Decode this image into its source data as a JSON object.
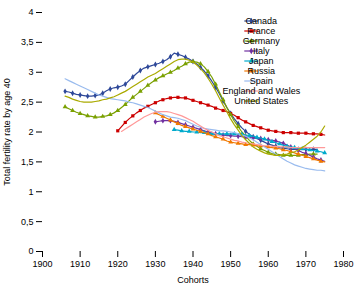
{
  "chart_data": {
    "type": "line",
    "xlabel": "Cohorts",
    "ylabel": "Total fertility rate by age 40",
    "xlim": [
      1900,
      1980
    ],
    "ylim": [
      0,
      4
    ],
    "xticks": [
      1900,
      1910,
      1920,
      1930,
      1940,
      1950,
      1960,
      1970,
      1980
    ],
    "yticks": [
      0,
      {
        "value": 0.5,
        "label": "0,5"
      },
      1,
      {
        "value": 1.5,
        "label": "1,5"
      },
      2,
      {
        "value": 2.5,
        "label": "2,5"
      },
      3,
      {
        "value": 3.5,
        "label": "3,5"
      },
      4
    ],
    "grid": false,
    "legend": "upper right",
    "x": [
      1906,
      1907,
      1908,
      1909,
      1910,
      1911,
      1912,
      1913,
      1914,
      1915,
      1916,
      1917,
      1918,
      1919,
      1920,
      1921,
      1922,
      1923,
      1924,
      1925,
      1926,
      1927,
      1928,
      1929,
      1930,
      1931,
      1932,
      1933,
      1934,
      1935,
      1936,
      1937,
      1938,
      1939,
      1940,
      1941,
      1942,
      1943,
      1944,
      1945,
      1946,
      1947,
      1948,
      1949,
      1950,
      1951,
      1952,
      1953,
      1954,
      1955,
      1956,
      1957,
      1958,
      1959,
      1960,
      1961,
      1962,
      1963,
      1964,
      1965,
      1966,
      1967,
      1968,
      1969,
      1970,
      1971,
      1972,
      1973,
      1974,
      1975
    ],
    "series": [
      {
        "name": "Canada",
        "color": "#2E4899",
        "marker": "diamond",
        "values": [
          2.68,
          2.67,
          2.65,
          2.63,
          2.62,
          2.61,
          2.6,
          2.6,
          2.61,
          2.62,
          2.65,
          2.69,
          2.72,
          2.74,
          2.75,
          2.77,
          2.8,
          2.86,
          2.92,
          2.98,
          3.03,
          3.07,
          3.09,
          3.11,
          3.13,
          3.15,
          3.18,
          3.21,
          3.26,
          3.32,
          3.3,
          3.28,
          3.25,
          3.22,
          3.18,
          3.14,
          3.08,
          3.02,
          2.94,
          2.85,
          2.75,
          2.64,
          2.52,
          2.41,
          2.31,
          2.22,
          2.14,
          2.07,
          2.01,
          1.96,
          1.92,
          1.89,
          1.86,
          1.83,
          1.8,
          1.78,
          1.76,
          1.74,
          1.73,
          1.72,
          1.71,
          1.71,
          1.71,
          1.71,
          1.71,
          1.71,
          1.71,
          1.71,
          null,
          null
        ]
      },
      {
        "name": "France",
        "color": "#CC0000",
        "marker": "square",
        "values": [
          null,
          null,
          null,
          null,
          null,
          null,
          null,
          null,
          null,
          null,
          null,
          null,
          null,
          null,
          2.02,
          2.09,
          2.16,
          2.22,
          2.27,
          2.32,
          2.36,
          2.4,
          2.43,
          2.46,
          2.49,
          2.52,
          2.54,
          2.56,
          2.57,
          2.58,
          2.58,
          2.57,
          2.57,
          2.55,
          2.53,
          2.51,
          2.49,
          2.47,
          2.45,
          2.43,
          2.4,
          2.38,
          2.36,
          2.34,
          2.31,
          2.28,
          2.24,
          2.2,
          2.17,
          2.14,
          2.11,
          2.09,
          2.07,
          2.05,
          2.03,
          2.02,
          2.01,
          2.0,
          1.99,
          1.99,
          1.99,
          1.98,
          1.98,
          1.98,
          1.98,
          1.97,
          1.97,
          1.97,
          1.96,
          1.95
        ]
      },
      {
        "name": "Germany",
        "color": "#7AA000",
        "marker": "triangle",
        "values": [
          2.42,
          2.39,
          2.36,
          2.33,
          2.31,
          2.29,
          2.27,
          2.26,
          2.25,
          2.25,
          2.26,
          2.27,
          2.29,
          2.32,
          2.36,
          2.41,
          2.46,
          2.52,
          2.58,
          2.63,
          2.68,
          2.73,
          2.78,
          2.83,
          2.87,
          2.91,
          2.94,
          2.97,
          3.0,
          3.03,
          3.07,
          3.1,
          3.14,
          3.17,
          3.18,
          3.17,
          3.14,
          3.09,
          3.01,
          2.92,
          2.8,
          2.67,
          2.54,
          2.41,
          2.29,
          2.18,
          2.09,
          2.0,
          1.93,
          1.86,
          1.8,
          1.76,
          1.72,
          1.69,
          1.66,
          1.64,
          1.63,
          1.62,
          1.61,
          1.61,
          1.61,
          1.61,
          1.61,
          1.62,
          1.62,
          1.63,
          1.63,
          1.63,
          null,
          null
        ]
      },
      {
        "name": "Italy",
        "color": "#7030A0",
        "marker": "diamond",
        "values": [
          null,
          null,
          null,
          null,
          null,
          null,
          null,
          null,
          null,
          null,
          null,
          null,
          null,
          null,
          null,
          null,
          null,
          null,
          null,
          null,
          null,
          null,
          null,
          null,
          2.17,
          2.18,
          2.19,
          2.19,
          2.19,
          2.18,
          2.16,
          2.14,
          2.12,
          2.1,
          2.08,
          2.06,
          2.04,
          2.02,
          2.0,
          1.98,
          1.97,
          1.96,
          1.95,
          1.94,
          1.94,
          1.93,
          1.93,
          1.92,
          1.91,
          1.91,
          1.9,
          1.89,
          1.89,
          1.88,
          1.87,
          1.86,
          1.85,
          1.83,
          1.81,
          1.78,
          1.75,
          1.72,
          1.69,
          1.66,
          1.64,
          1.61,
          1.58,
          1.55,
          1.53,
          1.51
        ]
      },
      {
        "name": "Japan",
        "color": "#00AACC",
        "marker": "triangle",
        "values": [
          null,
          null,
          null,
          null,
          null,
          null,
          null,
          null,
          null,
          null,
          null,
          null,
          null,
          null,
          null,
          null,
          null,
          null,
          null,
          null,
          null,
          null,
          null,
          null,
          null,
          null,
          null,
          null,
          null,
          2.04,
          2.03,
          2.02,
          2.01,
          2.01,
          2.0,
          2.0,
          1.99,
          1.99,
          1.98,
          1.97,
          1.97,
          1.97,
          1.97,
          1.97,
          1.97,
          1.97,
          1.97,
          1.96,
          1.95,
          1.94,
          1.93,
          1.91,
          1.9,
          1.88,
          1.86,
          1.84,
          1.82,
          1.8,
          1.78,
          1.76,
          1.75,
          1.74,
          1.73,
          1.72,
          1.71,
          1.7,
          1.69,
          1.68,
          1.67,
          1.65
        ]
      },
      {
        "name": "Russia",
        "color": "#F07800",
        "marker": "triangle",
        "values": [
          null,
          null,
          null,
          null,
          null,
          null,
          null,
          null,
          null,
          null,
          null,
          null,
          null,
          null,
          null,
          null,
          null,
          null,
          null,
          null,
          null,
          null,
          null,
          null,
          2.32,
          2.29,
          2.26,
          2.23,
          2.2,
          2.17,
          2.14,
          2.11,
          2.09,
          2.07,
          2.05,
          2.03,
          2.01,
          1.99,
          1.97,
          1.94,
          1.92,
          1.9,
          1.88,
          1.85,
          1.83,
          1.82,
          1.81,
          1.8,
          1.79,
          1.79,
          1.78,
          1.77,
          1.77,
          1.76,
          1.75,
          1.74,
          1.73,
          1.72,
          1.7,
          1.69,
          1.67,
          1.65,
          1.63,
          1.61,
          1.59,
          1.57,
          1.55,
          1.53,
          1.51,
          1.5
        ]
      },
      {
        "name": "Spain",
        "color": "#99BBEE",
        "values": [
          2.89,
          2.86,
          2.83,
          2.8,
          2.77,
          2.74,
          2.71,
          2.68,
          2.65,
          2.62,
          2.6,
          2.58,
          2.56,
          2.55,
          2.54,
          2.53,
          2.52,
          2.5,
          2.49,
          2.47,
          2.45,
          2.43,
          2.41,
          2.38,
          2.35,
          2.32,
          2.29,
          2.27,
          2.25,
          2.24,
          2.23,
          2.21,
          2.19,
          2.16,
          2.13,
          2.1,
          2.08,
          2.06,
          2.05,
          2.04,
          2.03,
          2.02,
          2.02,
          2.01,
          2.0,
          1.99,
          1.97,
          1.95,
          1.93,
          1.9,
          1.87,
          1.83,
          1.79,
          1.75,
          1.71,
          1.67,
          1.63,
          1.59,
          1.55,
          1.51,
          1.48,
          1.45,
          1.43,
          1.41,
          1.39,
          1.38,
          1.37,
          1.36,
          1.36,
          1.35
        ]
      },
      {
        "name": "England and Wales",
        "color": "#FF9999",
        "values": [
          null,
          null,
          null,
          null,
          null,
          null,
          null,
          null,
          null,
          null,
          null,
          null,
          null,
          null,
          null,
          2.01,
          2.05,
          2.09,
          2.13,
          2.17,
          2.21,
          2.25,
          2.28,
          2.31,
          2.33,
          2.34,
          2.34,
          2.34,
          2.33,
          2.31,
          2.29,
          2.27,
          2.24,
          2.21,
          2.18,
          2.14,
          2.1,
          2.06,
          2.03,
          2.0,
          1.97,
          1.94,
          1.92,
          1.9,
          1.88,
          1.86,
          1.85,
          1.83,
          1.82,
          1.81,
          1.8,
          1.79,
          1.78,
          1.77,
          1.77,
          1.76,
          1.76,
          1.75,
          1.75,
          1.75,
          1.74,
          1.74,
          1.74,
          1.74,
          1.74,
          1.74,
          1.74,
          1.74,
          1.74,
          1.74
        ]
      },
      {
        "name": "United States",
        "color": "#AAAA00",
        "values": [
          2.6,
          2.58,
          2.55,
          2.53,
          2.51,
          2.5,
          2.5,
          2.5,
          2.51,
          2.52,
          2.54,
          2.55,
          2.57,
          2.59,
          2.62,
          2.65,
          2.68,
          2.72,
          2.76,
          2.8,
          2.84,
          2.88,
          2.92,
          2.95,
          2.98,
          3.02,
          3.06,
          3.1,
          3.14,
          3.18,
          3.21,
          3.22,
          3.22,
          3.2,
          3.17,
          3.12,
          3.06,
          2.99,
          2.9,
          2.8,
          2.69,
          2.57,
          2.45,
          2.34,
          2.22,
          2.12,
          2.03,
          1.94,
          1.87,
          1.81,
          1.75,
          1.71,
          1.68,
          1.65,
          1.63,
          1.62,
          1.61,
          1.61,
          1.62,
          1.63,
          1.65,
          1.67,
          1.7,
          1.74,
          1.78,
          1.83,
          1.88,
          1.93,
          2.0,
          2.1
        ]
      }
    ]
  }
}
